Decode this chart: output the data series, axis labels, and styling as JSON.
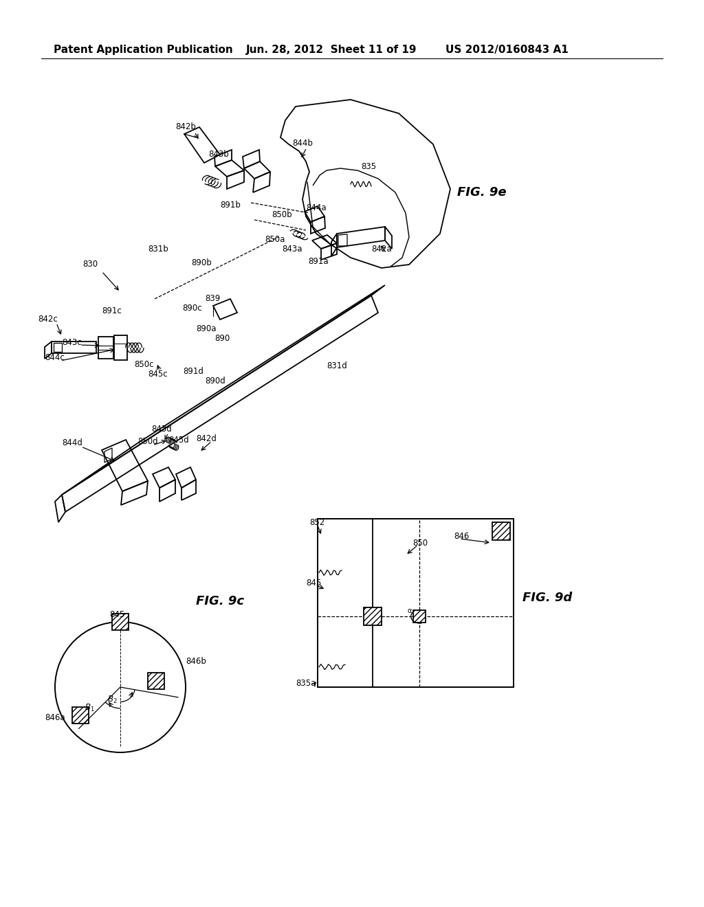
{
  "header_left": "Patent Application Publication",
  "header_mid": "Jun. 28, 2012  Sheet 11 of 19",
  "header_right": "US 2012/0160843 A1",
  "header_fontsize": 11,
  "bg_color": "#ffffff",
  "line_color": "#000000",
  "fig_label_9e": "FIG. 9e",
  "fig_label_9d": "FIG. 9d",
  "fig_label_9c": "FIG. 9c",
  "label_fs": 8.5,
  "fig_label_fs": 13
}
